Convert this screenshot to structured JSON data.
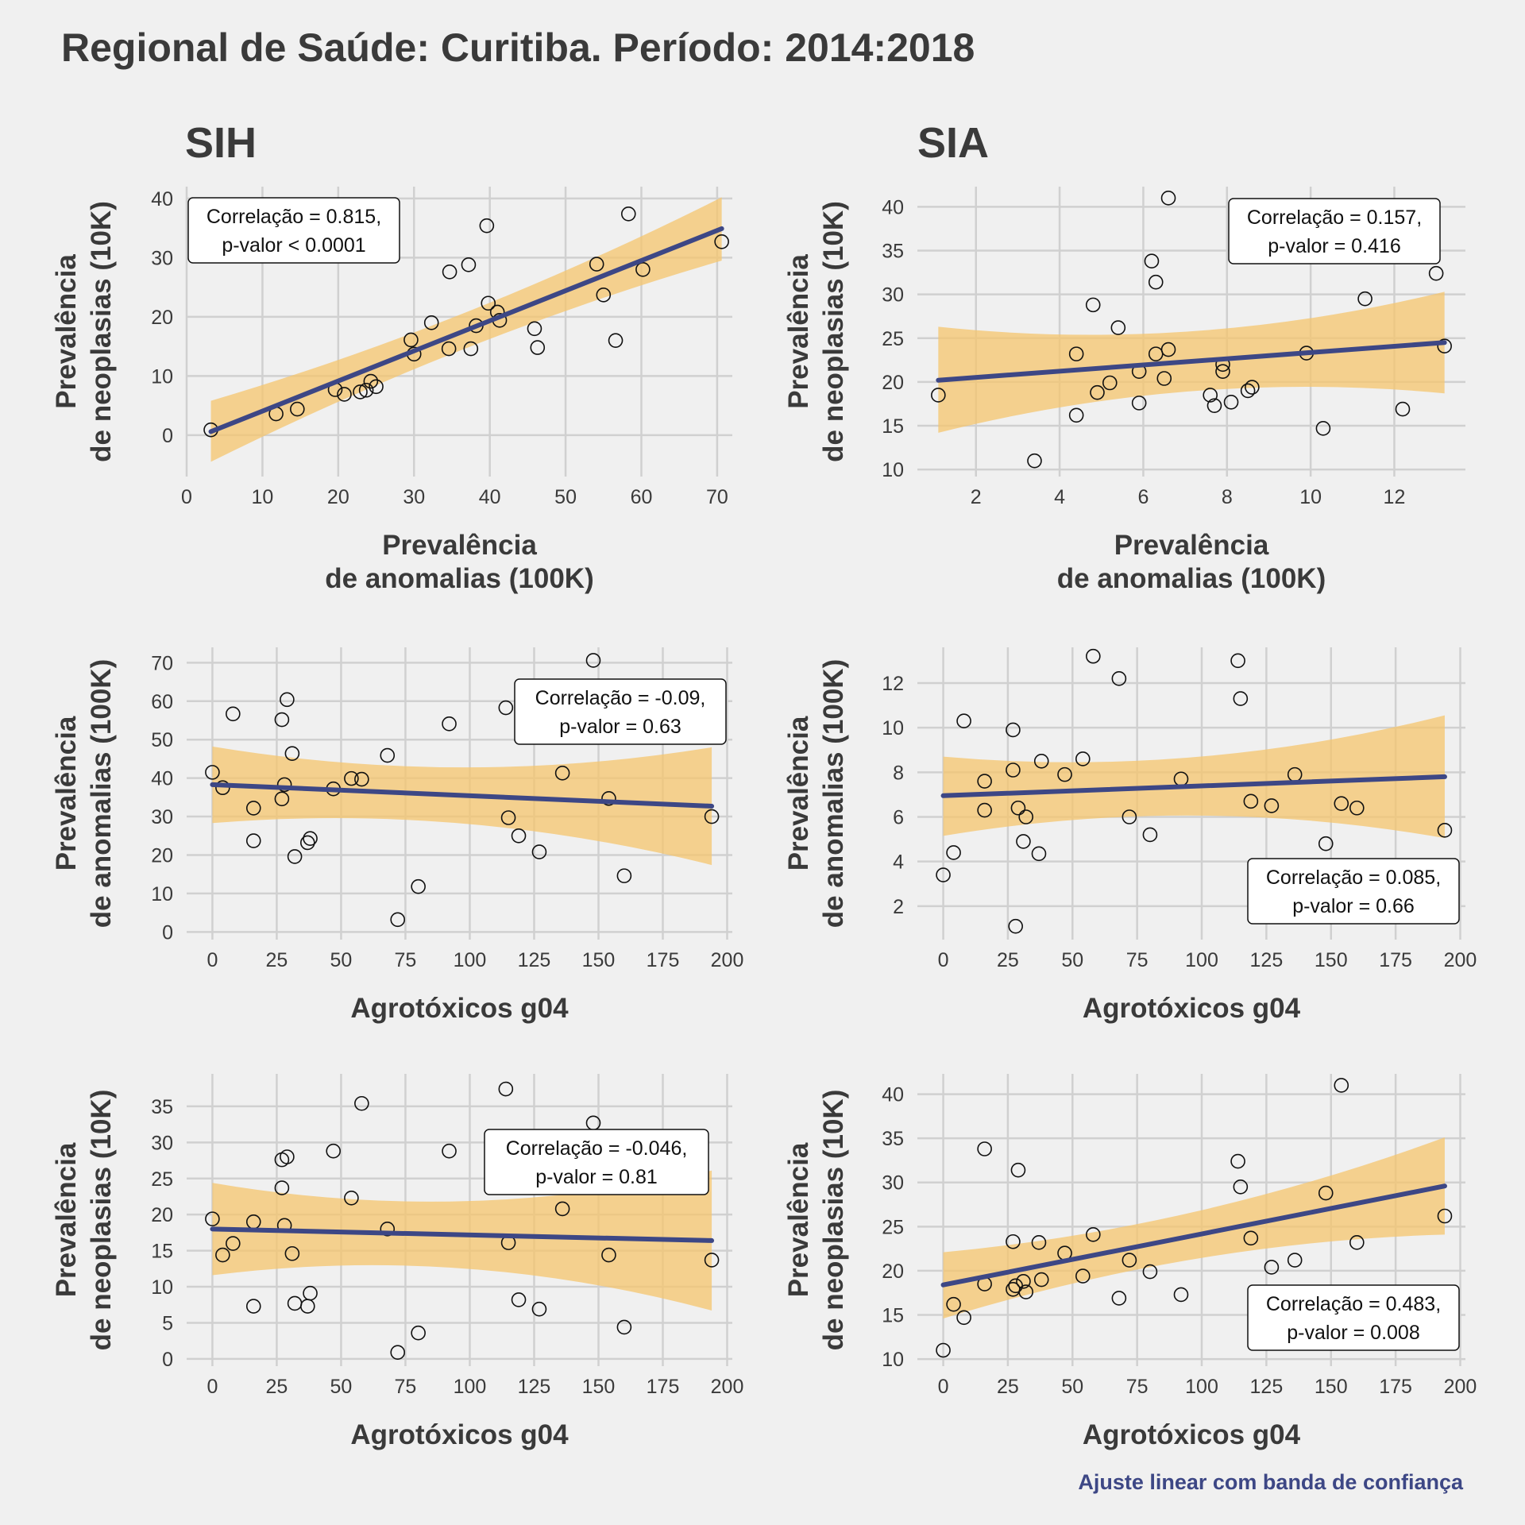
{
  "title": "Regional de Saúde: Curitiba. Período: 2014:2018",
  "column_titles": [
    "SIH",
    "SIA"
  ],
  "caption": "Ajuste linear com banda de confiança",
  "colors": {
    "background": "#f0f0f0",
    "line": "#3d4785",
    "band": "#f5c66e",
    "grid": "#d0d0d0",
    "text": "#3a3a3a",
    "caption": "#3d4785"
  },
  "chart_data": [
    {
      "id": "p1",
      "type": "scatter",
      "xlabel": [
        "Prevalência",
        "de anomalias (100K)"
      ],
      "ylabel": [
        "Prevalência",
        "de neoplasias (10K)"
      ],
      "xlim": [
        0,
        72
      ],
      "ylim": [
        -7,
        42
      ],
      "xticks": [
        0,
        10,
        20,
        30,
        40,
        50,
        60,
        70
      ],
      "yticks": [
        0,
        10,
        20,
        30,
        40
      ],
      "annotation": [
        "Correlação = 0.815,",
        "p-valor < 0.0001"
      ],
      "annotation_pos": "top-left",
      "fit": {
        "x": [
          3.2,
          70.6
        ],
        "y": [
          0.6,
          34.9
        ],
        "band_lower": [
          -4.5,
          29.5
        ],
        "band_upper": [
          5.8,
          40.2
        ]
      },
      "points": [
        [
          3.2,
          0.9
        ],
        [
          11.8,
          3.6
        ],
        [
          14.6,
          4.4
        ],
        [
          19.6,
          7.7
        ],
        [
          20.8,
          6.9
        ],
        [
          22.9,
          7.3
        ],
        [
          23.7,
          7.6
        ],
        [
          24.3,
          9.1
        ],
        [
          25.0,
          8.2
        ],
        [
          29.6,
          16.1
        ],
        [
          30.0,
          13.7
        ],
        [
          32.3,
          19.0
        ],
        [
          34.6,
          14.6
        ],
        [
          34.7,
          27.6
        ],
        [
          37.2,
          28.8
        ],
        [
          37.5,
          14.6
        ],
        [
          38.2,
          18.5
        ],
        [
          39.6,
          35.4
        ],
        [
          39.8,
          22.3
        ],
        [
          41.0,
          20.8
        ],
        [
          41.3,
          19.4
        ],
        [
          45.9,
          18.0
        ],
        [
          46.3,
          14.8
        ],
        [
          54.1,
          28.9
        ],
        [
          55.0,
          23.7
        ],
        [
          56.6,
          16.0
        ],
        [
          58.3,
          37.4
        ],
        [
          60.2,
          28.0
        ],
        [
          70.6,
          32.7
        ]
      ]
    },
    {
      "id": "p2",
      "type": "scatter",
      "xlabel": [
        "Prevalência",
        "de anomalias (100K)"
      ],
      "ylabel": [
        "Prevalência",
        "de neoplasias (10K)"
      ],
      "xlim": [
        0.6,
        13.7
      ],
      "ylim": [
        9.2,
        42.3
      ],
      "xticks": [
        2,
        4,
        6,
        8,
        10,
        12
      ],
      "yticks": [
        10,
        15,
        20,
        25,
        30,
        35,
        40
      ],
      "annotation": [
        "Correlação = 0.157,",
        "p-valor = 0.416"
      ],
      "annotation_pos": "top-right",
      "fit": {
        "x": [
          1.1,
          13.2
        ],
        "y": [
          20.2,
          24.5
        ],
        "band_lower": [
          14.2,
          18.7
        ],
        "band_upper": [
          26.3,
          30.3
        ]
      },
      "points": [
        [
          1.1,
          18.5
        ],
        [
          3.4,
          11.0
        ],
        [
          4.4,
          23.2
        ],
        [
          4.4,
          16.2
        ],
        [
          4.8,
          28.8
        ],
        [
          4.9,
          18.8
        ],
        [
          5.2,
          19.9
        ],
        [
          5.4,
          26.2
        ],
        [
          5.9,
          21.2
        ],
        [
          5.9,
          17.6
        ],
        [
          6.2,
          33.8
        ],
        [
          6.3,
          31.4
        ],
        [
          6.3,
          23.2
        ],
        [
          6.5,
          20.4
        ],
        [
          6.6,
          41.0
        ],
        [
          6.6,
          23.7
        ],
        [
          7.6,
          18.5
        ],
        [
          7.7,
          17.3
        ],
        [
          7.9,
          22.0
        ],
        [
          7.9,
          21.2
        ],
        [
          8.1,
          17.7
        ],
        [
          8.5,
          19.0
        ],
        [
          8.6,
          19.4
        ],
        [
          9.9,
          23.3
        ],
        [
          10.3,
          14.7
        ],
        [
          11.3,
          29.5
        ],
        [
          12.2,
          16.9
        ],
        [
          13.0,
          32.4
        ],
        [
          13.2,
          24.1
        ]
      ]
    },
    {
      "id": "p3",
      "type": "scatter",
      "xlabel": [
        "Agrotóxicos g04"
      ],
      "ylabel": [
        "Prevalência",
        "de anomalias (100K)"
      ],
      "xlim": [
        -10,
        202
      ],
      "ylim": [
        -2,
        74
      ],
      "xticks": [
        0,
        25,
        50,
        75,
        100,
        125,
        150,
        175,
        200
      ],
      "yticks": [
        0,
        10,
        20,
        30,
        40,
        50,
        60,
        70
      ],
      "annotation": [
        "Correlação = -0.09,",
        "p-valor = 0.63"
      ],
      "annotation_pos": "top-right",
      "fit": {
        "x": [
          0,
          194
        ],
        "y": [
          38.3,
          32.7
        ],
        "band_lower": [
          28.3,
          17.4
        ],
        "band_upper": [
          48.2,
          48.0
        ]
      },
      "points": [
        [
          0,
          41.5
        ],
        [
          4,
          37.5
        ],
        [
          8,
          56.7
        ],
        [
          16,
          32.2
        ],
        [
          16,
          23.7
        ],
        [
          27,
          55.2
        ],
        [
          27,
          34.6
        ],
        [
          28,
          38.3
        ],
        [
          29,
          60.4
        ],
        [
          31,
          46.4
        ],
        [
          32,
          19.6
        ],
        [
          37,
          23.2
        ],
        [
          38,
          24.3
        ],
        [
          47,
          37.2
        ],
        [
          54,
          39.9
        ],
        [
          58,
          39.7
        ],
        [
          68,
          45.9
        ],
        [
          72,
          3.2
        ],
        [
          80,
          11.8
        ],
        [
          92,
          54.1
        ],
        [
          114,
          58.3
        ],
        [
          115,
          29.7
        ],
        [
          119,
          25.0
        ],
        [
          127,
          20.8
        ],
        [
          136,
          41.3
        ],
        [
          148,
          70.6
        ],
        [
          154,
          34.7
        ],
        [
          160,
          14.6
        ],
        [
          194,
          30.0
        ]
      ]
    },
    {
      "id": "p4",
      "type": "scatter",
      "xlabel": [
        "Agrotóxicos g04"
      ],
      "ylabel": [
        "Prevalência",
        "de anomalias (100K)"
      ],
      "xlim": [
        -10,
        202
      ],
      "ylim": [
        0.5,
        13.6
      ],
      "xticks": [
        0,
        25,
        50,
        75,
        100,
        125,
        150,
        175,
        200
      ],
      "yticks": [
        2,
        4,
        6,
        8,
        10,
        12
      ],
      "annotation": [
        "Correlação = 0.085,",
        "p-valor = 0.66"
      ],
      "annotation_pos": "bottom-right",
      "fit": {
        "x": [
          0,
          194
        ],
        "y": [
          6.95,
          7.8
        ],
        "band_lower": [
          5.15,
          5.05
        ],
        "band_upper": [
          8.7,
          10.55
        ]
      },
      "points": [
        [
          0,
          3.4
        ],
        [
          4,
          4.4
        ],
        [
          8,
          10.3
        ],
        [
          16,
          7.6
        ],
        [
          16,
          6.3
        ],
        [
          27,
          9.9
        ],
        [
          27,
          8.1
        ],
        [
          28,
          1.1
        ],
        [
          29,
          6.4
        ],
        [
          31,
          4.9
        ],
        [
          32,
          6.0
        ],
        [
          37,
          4.35
        ],
        [
          38,
          8.5
        ],
        [
          47,
          7.9
        ],
        [
          54,
          8.6
        ],
        [
          58,
          13.2
        ],
        [
          68,
          12.2
        ],
        [
          72,
          6.0
        ],
        [
          80,
          5.2
        ],
        [
          92,
          7.7
        ],
        [
          114,
          13.0
        ],
        [
          115,
          11.3
        ],
        [
          119,
          6.7
        ],
        [
          127,
          6.5
        ],
        [
          136,
          7.9
        ],
        [
          148,
          4.8
        ],
        [
          154,
          6.6
        ],
        [
          160,
          6.4
        ],
        [
          194,
          5.4
        ]
      ]
    },
    {
      "id": "p5",
      "type": "scatter",
      "xlabel": [
        "Agrotóxicos g04"
      ],
      "ylabel": [
        "Prevalência",
        "de neoplasias (10K)"
      ],
      "xlim": [
        -10,
        202
      ],
      "ylim": [
        -1,
        39.5
      ],
      "xticks": [
        0,
        25,
        50,
        75,
        100,
        125,
        150,
        175,
        200
      ],
      "yticks": [
        0,
        5,
        10,
        15,
        20,
        25,
        30,
        35
      ],
      "annotation": [
        "Correlação = -0.046,",
        "p-valor = 0.81"
      ],
      "annotation_pos": "top-right",
      "fit": {
        "x": [
          0,
          194
        ],
        "y": [
          18.0,
          16.4
        ],
        "band_lower": [
          11.6,
          6.7
        ],
        "band_upper": [
          24.4,
          26.1
        ]
      },
      "points": [
        [
          0,
          19.4
        ],
        [
          4,
          14.4
        ],
        [
          8,
          16.0
        ],
        [
          16,
          19.0
        ],
        [
          16,
          7.3
        ],
        [
          27,
          27.6
        ],
        [
          27,
          23.7
        ],
        [
          28,
          18.5
        ],
        [
          29,
          28.0
        ],
        [
          31,
          14.6
        ],
        [
          32,
          7.7
        ],
        [
          37,
          7.3
        ],
        [
          38,
          9.1
        ],
        [
          47,
          28.8
        ],
        [
          54,
          22.3
        ],
        [
          58,
          35.4
        ],
        [
          68,
          18.0
        ],
        [
          72,
          0.9
        ],
        [
          80,
          3.6
        ],
        [
          92,
          28.8
        ],
        [
          114,
          37.4
        ],
        [
          115,
          16.1
        ],
        [
          119,
          8.2
        ],
        [
          127,
          6.9
        ],
        [
          136,
          20.8
        ],
        [
          148,
          32.7
        ],
        [
          154,
          14.4
        ],
        [
          160,
          4.4
        ],
        [
          194,
          13.7
        ]
      ]
    },
    {
      "id": "p6",
      "type": "scatter",
      "xlabel": [
        "Agrotóxicos g04"
      ],
      "ylabel": [
        "Prevalência",
        "de neoplasias (10K)"
      ],
      "xlim": [
        -10,
        202
      ],
      "ylim": [
        9.2,
        42.3
      ],
      "xticks": [
        0,
        25,
        50,
        75,
        100,
        125,
        150,
        175,
        200
      ],
      "yticks": [
        10,
        15,
        20,
        25,
        30,
        35,
        40
      ],
      "annotation": [
        "Correlação = 0.483,",
        "p-valor = 0.008"
      ],
      "annotation_pos": "bottom-right",
      "fit": {
        "x": [
          0,
          194
        ],
        "y": [
          18.4,
          29.6
        ],
        "band_lower": [
          14.6,
          24.1
        ],
        "band_upper": [
          22.1,
          35.1
        ]
      },
      "points": [
        [
          0,
          11.0
        ],
        [
          4,
          16.2
        ],
        [
          8,
          14.7
        ],
        [
          16,
          33.8
        ],
        [
          16,
          18.5
        ],
        [
          27,
          23.3
        ],
        [
          27,
          17.9
        ],
        [
          28,
          18.3
        ],
        [
          29,
          31.4
        ],
        [
          31,
          18.8
        ],
        [
          32,
          17.6
        ],
        [
          37,
          23.2
        ],
        [
          38,
          19.0
        ],
        [
          47,
          22.0
        ],
        [
          54,
          19.4
        ],
        [
          58,
          24.1
        ],
        [
          68,
          16.9
        ],
        [
          72,
          21.2
        ],
        [
          80,
          19.9
        ],
        [
          92,
          17.3
        ],
        [
          114,
          32.4
        ],
        [
          115,
          29.5
        ],
        [
          119,
          23.7
        ],
        [
          127,
          20.4
        ],
        [
          136,
          21.2
        ],
        [
          148,
          28.8
        ],
        [
          154,
          41.0
        ],
        [
          160,
          23.2
        ],
        [
          194,
          26.2
        ]
      ]
    }
  ]
}
